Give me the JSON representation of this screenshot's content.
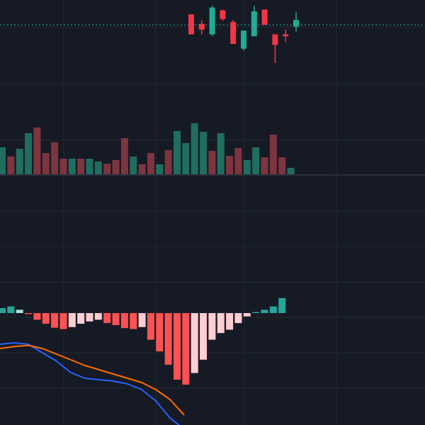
{
  "colors": {
    "background": "#161a25",
    "grid": "#232837",
    "pane_divider": "#2a2f3c",
    "up": "#22ab94",
    "down": "#f23645",
    "volume_up": "#1f6e60",
    "volume_down": "#7d3540",
    "hist_up_strong": "#26a69a",
    "hist_up_weak": "#b2dfdb",
    "hist_down_strong": "#ff5252",
    "hist_down_weak": "#ffcdd2",
    "macd_line": "#2962ff",
    "signal_line": "#ff6d00",
    "last_price_line": "#22ab94"
  },
  "chart_data": [
    {
      "type": "candlestick",
      "pane": "price",
      "grid": true,
      "ylim": [
        0,
        100
      ],
      "last_price": 80,
      "candles": [
        {
          "i": 10,
          "open": 91,
          "high": 90,
          "low": 70,
          "close": 70
        },
        {
          "i": 11,
          "open": 81,
          "high": 85,
          "low": 70,
          "close": 75
        },
        {
          "i": 12,
          "open": 70,
          "high": 100,
          "low": 68,
          "close": 98
        },
        {
          "i": 13,
          "open": 95,
          "high": 96,
          "low": 84,
          "close": 86
        },
        {
          "i": 14,
          "open": 83,
          "high": 85,
          "low": 60,
          "close": 60
        },
        {
          "i": 15,
          "open": 55,
          "high": 74,
          "low": 53,
          "close": 74
        },
        {
          "i": 16,
          "open": 68,
          "high": 100,
          "low": 68,
          "close": 94
        },
        {
          "i": 17,
          "open": 96,
          "high": 96,
          "low": 80,
          "close": 80
        },
        {
          "i": 18,
          "open": 70,
          "high": 70,
          "low": 40,
          "close": 59
        },
        {
          "i": 19,
          "open": 70,
          "high": 75,
          "low": 62,
          "close": 68
        },
        {
          "i": 20,
          "open": 78,
          "high": 93,
          "low": 73,
          "close": 85
        }
      ]
    },
    {
      "type": "bar",
      "pane": "volume",
      "values": [
        38,
        25,
        36,
        58,
        66,
        30,
        45,
        22,
        22,
        22,
        22,
        18,
        15,
        20,
        51,
        25,
        14,
        30,
        14,
        34,
        61,
        44,
        72,
        60,
        33,
        58,
        26,
        37,
        20,
        38,
        24,
        56,
        24,
        9
      ],
      "up": [
        true,
        false,
        true,
        true,
        false,
        false,
        false,
        false,
        true,
        false,
        true,
        true,
        false,
        false,
        false,
        true,
        false,
        false,
        true,
        false,
        true,
        true,
        true,
        true,
        false,
        true,
        false,
        false,
        true,
        true,
        false,
        false,
        false,
        true
      ]
    },
    {
      "type": "bar",
      "pane": "macd_histogram",
      "values": [
        1.5,
        2.0,
        1.0,
        -0.3,
        -2.0,
        -3.2,
        -4.4,
        -4.8,
        -4.2,
        -3.2,
        -2.5,
        -2.0,
        -3.0,
        -3.6,
        -4.5,
        -4.8,
        -4.2,
        -8.0,
        -11.5,
        -15.5,
        -20.0,
        -21.5,
        -18.0,
        -14.0,
        -8.0,
        -6.0,
        -5.0,
        -3.0,
        -1.0,
        0.3,
        1.0,
        2.0,
        4.5
      ]
    },
    {
      "type": "line",
      "pane": "macd_lines",
      "series": [
        {
          "values": [
            -2,
            -1.5,
            -2.0,
            -5.0,
            -8.0,
            -12.0,
            -14.0,
            -14.5,
            -15.0,
            -16.0,
            -18.0,
            -22.0,
            -28.0,
            -32.0
          ]
        },
        {
          "values": [
            -3.5,
            -2.8,
            -2.4,
            -3.5,
            -5.5,
            -7.5,
            -9.5,
            -11.0,
            -12.5,
            -14.0,
            -15.5,
            -18.0,
            -21.5,
            -27.0
          ]
        }
      ]
    }
  ]
}
